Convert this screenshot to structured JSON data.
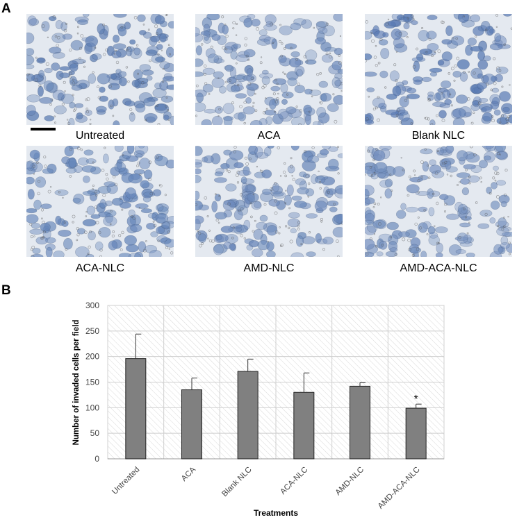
{
  "panel_a": {
    "letter": "A",
    "images": [
      {
        "label": "Untreated",
        "seed": 11,
        "tone": "#5f7fb4"
      },
      {
        "label": "ACA",
        "seed": 23,
        "tone": "#6f8cbc"
      },
      {
        "label": "Blank NLC",
        "seed": 37,
        "tone": "#5a7bb4"
      },
      {
        "label": "ACA-NLC",
        "seed": 41,
        "tone": "#6586ba"
      },
      {
        "label": "AMD-NLC",
        "seed": 53,
        "tone": "#6b89bb"
      },
      {
        "label": "AMD-ACA-NLC",
        "seed": 67,
        "tone": "#7490bf"
      }
    ]
  },
  "panel_b": {
    "letter": "B"
  },
  "chart_data": {
    "type": "bar",
    "categories": [
      "Untreated",
      "ACA",
      "Blank NLC",
      "ACA-NLC",
      "AMD-NLC",
      "AMD-ACA-NLC"
    ],
    "values": [
      196,
      135,
      171,
      130,
      142,
      99
    ],
    "error_plus": [
      48,
      23,
      24,
      38,
      7,
      8
    ],
    "annotations": [
      "",
      "",
      "",
      "",
      "",
      "*"
    ],
    "xlabel": "Treatments",
    "ylabel": "Number of invaded cells per field",
    "ylim": [
      0,
      300
    ],
    "yticks": [
      0,
      50,
      100,
      150,
      200,
      250,
      300
    ],
    "grid": true,
    "bar_color": "#808080"
  }
}
